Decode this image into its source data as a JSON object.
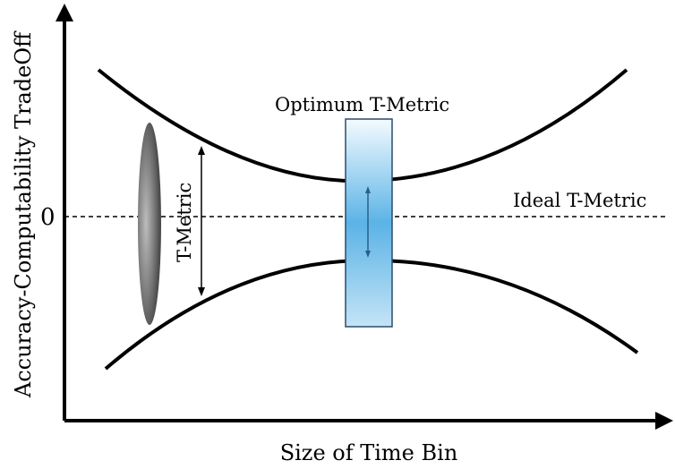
{
  "axes": {
    "y_label": "Accuracy-Computability TradeOff",
    "x_label": "Size of Time Bin",
    "zero_label": "0"
  },
  "labels": {
    "optimum": "Optimum T-Metric",
    "ideal": "Ideal T-Metric",
    "t_metric": "T-Metric"
  },
  "colors": {
    "curve": "#000000",
    "optimum_band_top": "#ffffff",
    "optimum_band_mid": "#5bb3e6",
    "optimum_band_border": "#2b4a6b",
    "arrow_blue": "#2b5f8a",
    "ellipse_dark": "#5a5a5a"
  }
}
